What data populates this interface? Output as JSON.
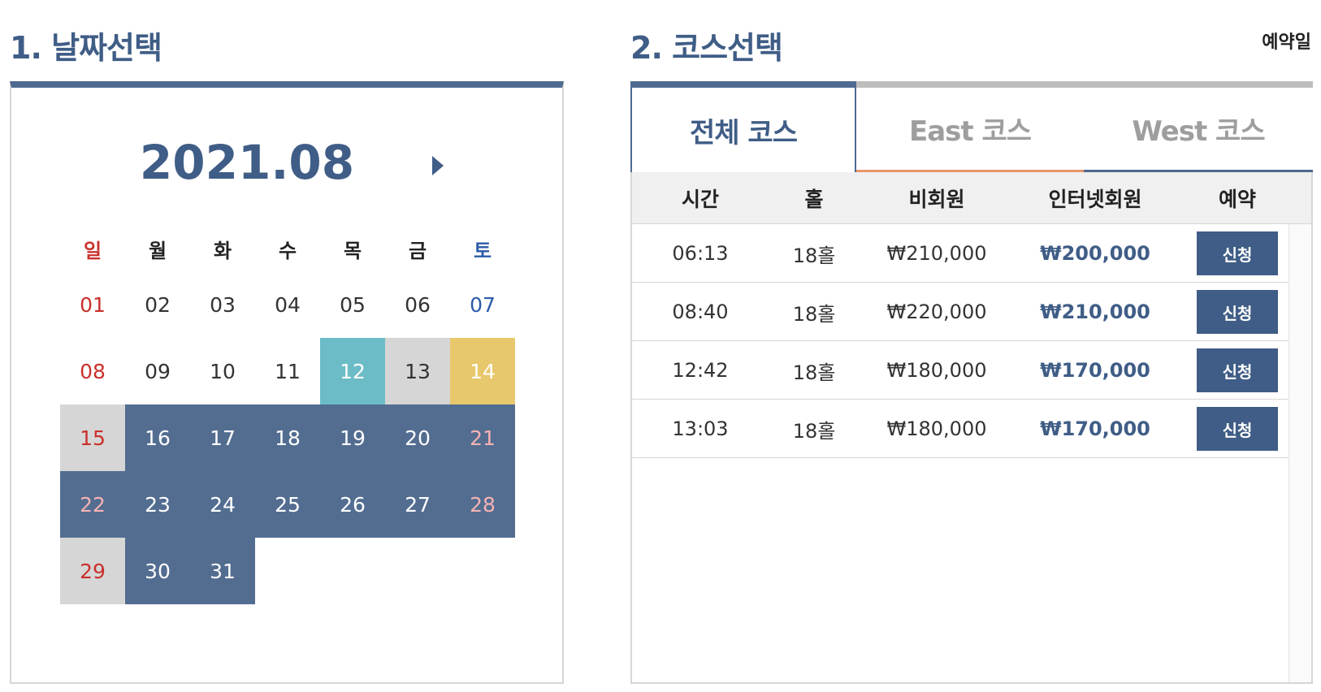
{
  "titles": {
    "date_select": "1. 날짜선택",
    "course_select": "2. 코스선택",
    "reservation_date_label": "예약일"
  },
  "calendar": {
    "month": "2021.08",
    "weekdays": [
      "일",
      "월",
      "화",
      "수",
      "목",
      "금",
      "토"
    ],
    "days": [
      {
        "label": "01",
        "state": "normal"
      },
      {
        "label": "02",
        "state": "normal"
      },
      {
        "label": "03",
        "state": "normal"
      },
      {
        "label": "04",
        "state": "normal"
      },
      {
        "label": "05",
        "state": "normal"
      },
      {
        "label": "06",
        "state": "normal"
      },
      {
        "label": "07",
        "state": "normal"
      },
      {
        "label": "08",
        "state": "normal"
      },
      {
        "label": "09",
        "state": "normal"
      },
      {
        "label": "10",
        "state": "normal"
      },
      {
        "label": "11",
        "state": "normal"
      },
      {
        "label": "12",
        "state": "today"
      },
      {
        "label": "13",
        "state": "closed"
      },
      {
        "label": "14",
        "state": "selected"
      },
      {
        "label": "15",
        "state": "closed"
      },
      {
        "label": "16",
        "state": "open"
      },
      {
        "label": "17",
        "state": "open"
      },
      {
        "label": "18",
        "state": "open"
      },
      {
        "label": "19",
        "state": "open"
      },
      {
        "label": "20",
        "state": "open"
      },
      {
        "label": "21",
        "state": "open"
      },
      {
        "label": "22",
        "state": "open"
      },
      {
        "label": "23",
        "state": "open"
      },
      {
        "label": "24",
        "state": "open"
      },
      {
        "label": "25",
        "state": "open"
      },
      {
        "label": "26",
        "state": "open"
      },
      {
        "label": "27",
        "state": "open"
      },
      {
        "label": "28",
        "state": "open"
      },
      {
        "label": "29",
        "state": "closed"
      },
      {
        "label": "30",
        "state": "open"
      },
      {
        "label": "31",
        "state": "open"
      }
    ]
  },
  "tabs": [
    {
      "id": "all",
      "label": "전체 코스",
      "active": true
    },
    {
      "id": "east",
      "label": "East 코스",
      "active": false
    },
    {
      "id": "west",
      "label": "West 코스",
      "active": false
    }
  ],
  "table": {
    "headers": {
      "time": "시간",
      "hole": "홀",
      "non_member": "비회원",
      "internet_member": "인터넷회원",
      "reserve": "예약"
    },
    "rows": [
      {
        "time": "06:13",
        "hole": "18홀",
        "non_member": "₩210,000",
        "internet_member": "₩200,000",
        "button": "신청"
      },
      {
        "time": "08:40",
        "hole": "18홀",
        "non_member": "₩220,000",
        "internet_member": "₩210,000",
        "button": "신청"
      },
      {
        "time": "12:42",
        "hole": "18홀",
        "non_member": "₩180,000",
        "internet_member": "₩170,000",
        "button": "신청"
      },
      {
        "time": "13:03",
        "hole": "18홀",
        "non_member": "₩180,000",
        "internet_member": "₩170,000",
        "button": "신청"
      }
    ]
  }
}
